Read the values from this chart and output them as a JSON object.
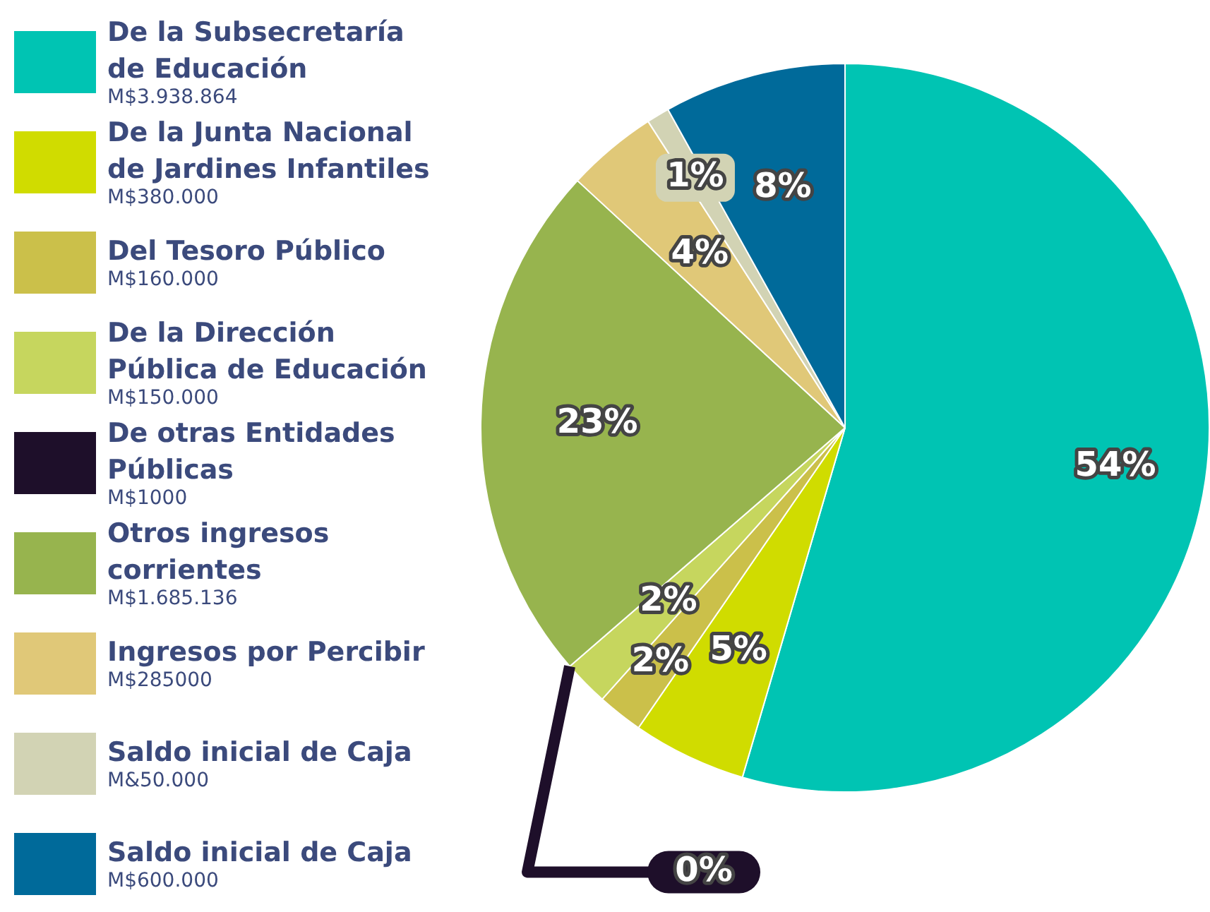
{
  "chart_data": {
    "type": "pie",
    "legend": "left",
    "categories": [
      "De la Subsecretaría de Educación",
      "De la Junta Nacional de Jardines Infantiles",
      "Del Tesoro Público",
      "De la Dirección Pública de Educación",
      "De otras Entidades Públicas",
      "Otros ingresos corrientes",
      "Ingresos por Percibir",
      "Saldo inicial de Caja",
      "Saldo inicial de Caja"
    ],
    "values": [
      54,
      5,
      2,
      2,
      0,
      23,
      4,
      1,
      8
    ],
    "colors": [
      "#00c4b3",
      "#d0dc00",
      "#cbc04a",
      "#c6d65e",
      "#1e0f2a",
      "#97b44e",
      "#e0c878",
      "#d2d3b4",
      "#006a9a"
    ],
    "value_labels": [
      "54%",
      "5%",
      "2%",
      "2%",
      "0%",
      "23%",
      "4%",
      "1%",
      "8%"
    ],
    "annotations": [
      "M$3.938.864",
      "M$380.000",
      "M$160.000",
      "M$150.000",
      "M$1000",
      "M$1.685.136",
      "M$285000",
      "M&50.000",
      "M$600.000"
    ]
  }
}
